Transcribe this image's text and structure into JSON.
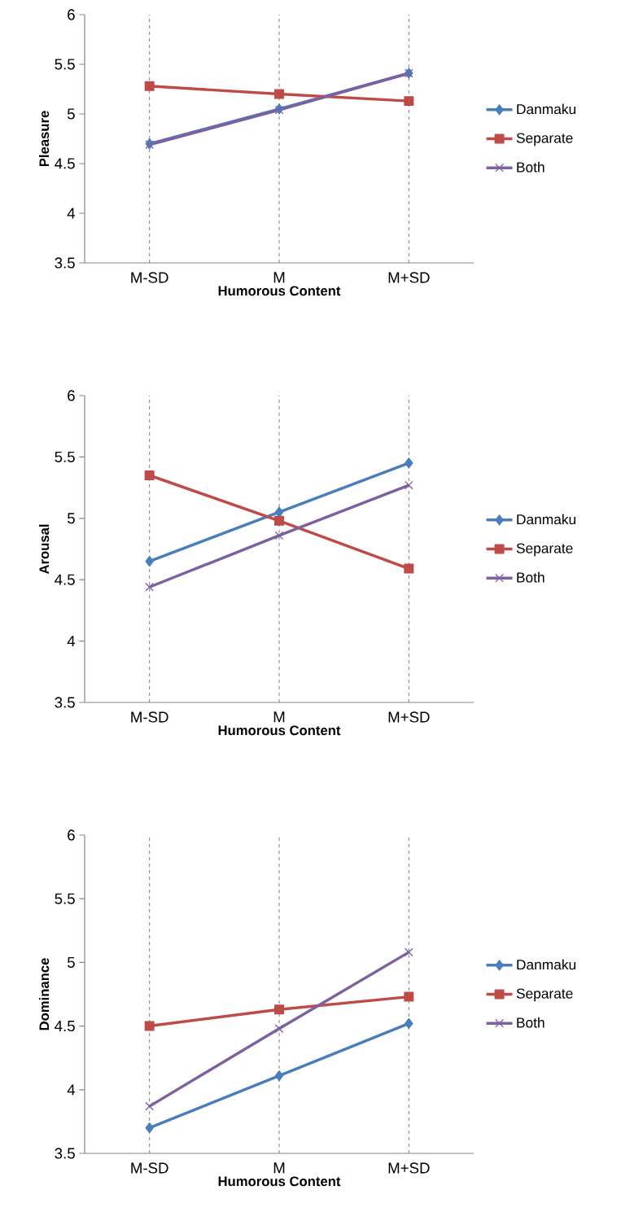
{
  "chart_data": [
    {
      "type": "line",
      "xlabel": "Humorous Content",
      "ylabel": "Pleasure",
      "categories": [
        "M-SD",
        "M",
        "M+SD"
      ],
      "ylim": [
        3.5,
        6
      ],
      "yticks": [
        3.5,
        4,
        4.5,
        5,
        5.5,
        6
      ],
      "grid": "x",
      "legend": "right",
      "line_style": "solid",
      "series": [
        {
          "name": "Danmaku",
          "color": "#4a7ebb",
          "marker": "diamond",
          "values": [
            4.7,
            5.05,
            5.41
          ]
        },
        {
          "name": "Separate",
          "color": "#be4b48",
          "marker": "square",
          "values": [
            5.28,
            5.2,
            5.13
          ]
        },
        {
          "name": "Both",
          "color": "#7d60a0",
          "marker": "cross",
          "values": [
            4.69,
            5.04,
            5.41
          ]
        }
      ]
    },
    {
      "type": "line",
      "xlabel": "Humorous Content",
      "ylabel": "Arousal",
      "categories": [
        "M-SD",
        "M",
        "M+SD"
      ],
      "ylim": [
        3.5,
        6
      ],
      "yticks": [
        3.5,
        4,
        4.5,
        5,
        5.5,
        6
      ],
      "grid": "x",
      "legend": "right",
      "line_style": "solid",
      "series": [
        {
          "name": "Danmaku",
          "color": "#4a7ebb",
          "marker": "diamond",
          "values": [
            4.65,
            5.05,
            5.45
          ]
        },
        {
          "name": "Separate",
          "color": "#be4b48",
          "marker": "square",
          "values": [
            5.35,
            4.98,
            4.59
          ]
        },
        {
          "name": "Both",
          "color": "#7d60a0",
          "marker": "cross",
          "values": [
            4.44,
            4.86,
            5.27
          ]
        }
      ]
    },
    {
      "type": "line",
      "xlabel": "Humorous Content",
      "ylabel": "Dominance",
      "categories": [
        "M-SD",
        "M",
        "M+SD"
      ],
      "ylim": [
        3.5,
        6
      ],
      "yticks": [
        3.5,
        4,
        4.5,
        5,
        5.5,
        6
      ],
      "grid": "x",
      "legend": "right",
      "line_style": "solid",
      "series": [
        {
          "name": "Danmaku",
          "color": "#4a7ebb",
          "marker": "diamond",
          "values": [
            3.7,
            4.11,
            4.52
          ]
        },
        {
          "name": "Separate",
          "color": "#be4b48",
          "marker": "square",
          "values": [
            4.5,
            4.63,
            4.73
          ]
        },
        {
          "name": "Both",
          "color": "#7d60a0",
          "marker": "cross",
          "values": [
            3.87,
            4.48,
            5.08
          ]
        }
      ]
    }
  ]
}
